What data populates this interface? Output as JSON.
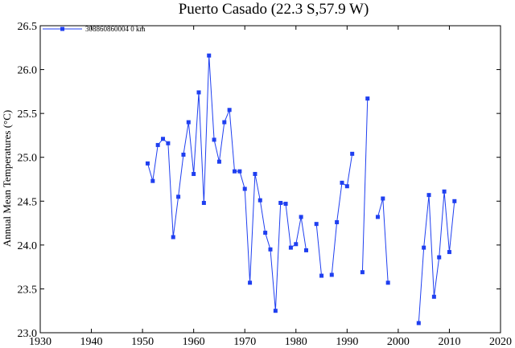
{
  "chart_data": {
    "type": "line",
    "title": "Puerto Casado (22.3 S,57.9 W)",
    "ylabel": "Annual Mean Temperatures (°C)",
    "xlabel": "",
    "xlim": [
      1930,
      2020
    ],
    "ylim": [
      23.0,
      26.5
    ],
    "xticks": [
      1930,
      1940,
      1950,
      1960,
      1970,
      1980,
      1990,
      2000,
      2010,
      2020
    ],
    "yticks": [
      23.0,
      23.5,
      24.0,
      24.5,
      25.0,
      25.5,
      26.0,
      26.5
    ],
    "grid": false,
    "legend_position": "top-left",
    "series": [
      {
        "name": "308860860004  0 km",
        "color": "#1f3ff0",
        "segments": [
          [
            [
              1951,
              24.93
            ],
            [
              1952,
              24.73
            ],
            [
              1953,
              25.14
            ],
            [
              1954,
              25.21
            ],
            [
              1955,
              25.16
            ],
            [
              1956,
              24.09
            ],
            [
              1957,
              24.55
            ],
            [
              1958,
              25.03
            ],
            [
              1959,
              25.4
            ],
            [
              1960,
              24.81
            ],
            [
              1961,
              25.74
            ],
            [
              1962,
              24.48
            ],
            [
              1963,
              26.16
            ],
            [
              1964,
              25.2
            ],
            [
              1965,
              24.95
            ],
            [
              1966,
              25.4
            ],
            [
              1967,
              25.54
            ],
            [
              1968,
              24.84
            ],
            [
              1969,
              24.84
            ],
            [
              1970,
              24.64
            ],
            [
              1971,
              23.57
            ],
            [
              1972,
              24.81
            ],
            [
              1973,
              24.51
            ],
            [
              1974,
              24.14
            ],
            [
              1975,
              23.95
            ],
            [
              1976,
              23.25
            ],
            [
              1977,
              24.48
            ],
            [
              1978,
              24.47
            ],
            [
              1979,
              23.97
            ],
            [
              1980,
              24.01
            ],
            [
              1981,
              24.32
            ],
            [
              1982,
              23.94
            ]
          ],
          [
            [
              1984,
              24.24
            ],
            [
              1985,
              23.65
            ]
          ],
          [
            [
              1987,
              23.66
            ],
            [
              1988,
              24.26
            ],
            [
              1989,
              24.71
            ],
            [
              1990,
              24.67
            ],
            [
              1991,
              25.04
            ]
          ],
          [
            [
              1993,
              23.69
            ],
            [
              1994,
              25.67
            ]
          ],
          [
            [
              1996,
              24.32
            ],
            [
              1997,
              24.53
            ],
            [
              1998,
              23.57
            ]
          ],
          [
            [
              2004,
              23.11
            ],
            [
              2005,
              23.97
            ],
            [
              2006,
              24.57
            ],
            [
              2007,
              23.41
            ],
            [
              2008,
              23.86
            ],
            [
              2009,
              24.61
            ],
            [
              2010,
              23.92
            ],
            [
              2011,
              24.5
            ]
          ]
        ]
      }
    ]
  }
}
